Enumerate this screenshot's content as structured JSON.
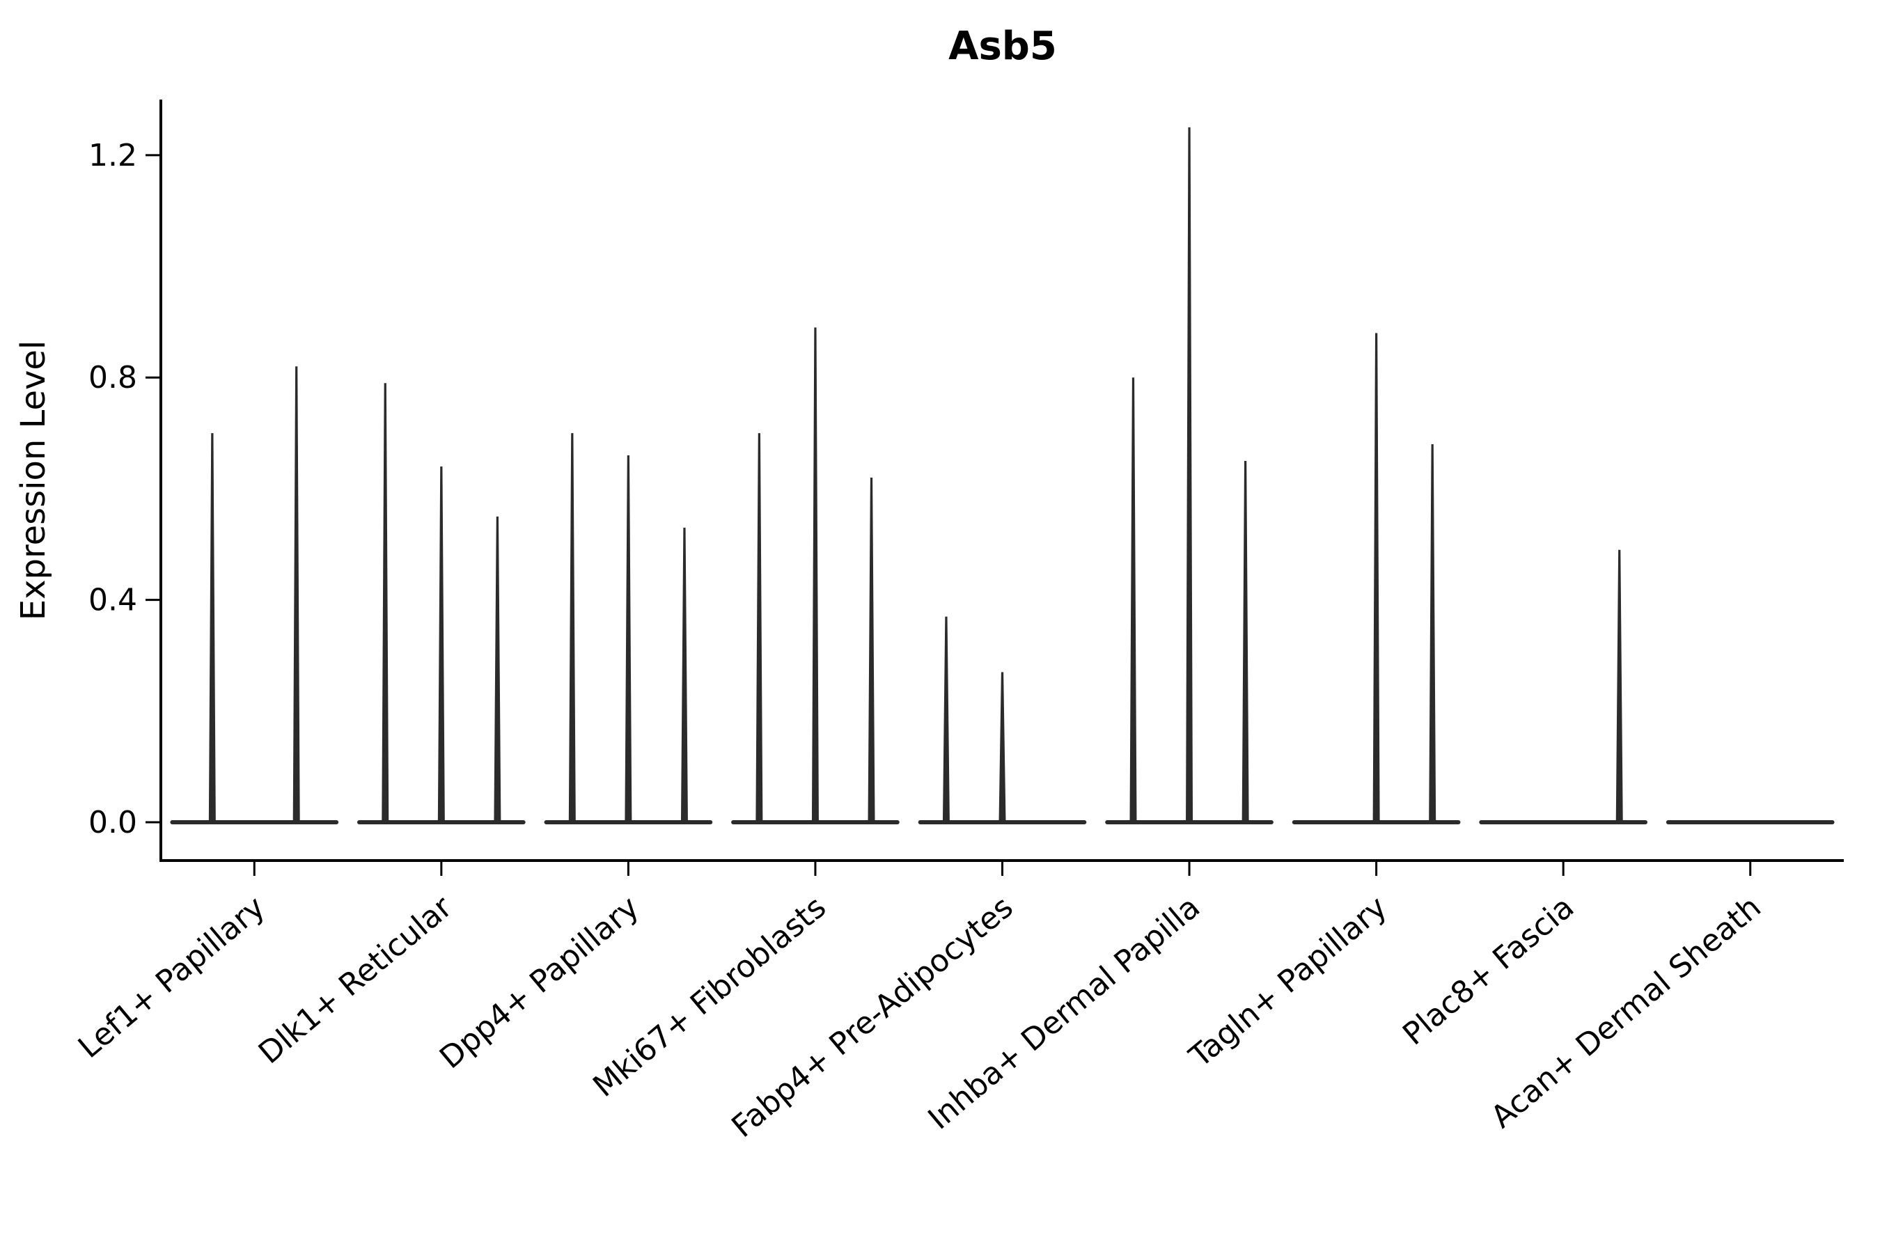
{
  "chart_data": {
    "type": "violin",
    "title": "Asb5",
    "xlabel": "",
    "ylabel": "Expression Level",
    "ylim": [
      0,
      1.3
    ],
    "yticks": [
      0.0,
      0.4,
      0.8,
      1.2
    ],
    "ytick_labels": [
      "0.0",
      "0.4",
      "0.8",
      "1.2"
    ],
    "grid": false,
    "legend_position": "none",
    "violin_color": "#2b2b2b",
    "axis_color": "#000000",
    "categories": [
      "Lef1+ Papillary",
      "Dlk1+ Reticular",
      "Dpp4+ Papillary",
      "Mki67+ Fibroblasts",
      "Fabp4+ Pre-Adipocytes",
      "Inhba+ Dermal Papilla",
      "Tagln+ Papillary",
      "Plac8+ Fascia",
      "Acan+ Dermal Sheath"
    ],
    "groups": [
      {
        "label": "Lef1+ Papillary",
        "violin_max": [
          0.7,
          0.82
        ]
      },
      {
        "label": "Dlk1+ Reticular",
        "violin_max": [
          0.79,
          0.64,
          0.55
        ]
      },
      {
        "label": "Dpp4+ Papillary",
        "violin_max": [
          0.7,
          0.66,
          0.53
        ]
      },
      {
        "label": "Mki67+ Fibroblasts",
        "violin_max": [
          0.7,
          0.89,
          0.62
        ]
      },
      {
        "label": "Fabp4+ Pre-Adipocytes",
        "violin_max": [
          0.37,
          0.27,
          0.0
        ]
      },
      {
        "label": "Inhba+ Dermal Papilla",
        "violin_max": [
          0.8,
          1.25,
          0.65
        ]
      },
      {
        "label": "Tagln+ Papillary",
        "violin_max": [
          0.0,
          0.88,
          0.68
        ]
      },
      {
        "label": "Plac8+ Fascia",
        "violin_max": [
          0.0,
          0.0,
          0.49
        ]
      },
      {
        "label": "Acan+ Dermal Sheath",
        "violin_max": [
          0.0,
          0.0,
          0.0
        ]
      }
    ]
  }
}
